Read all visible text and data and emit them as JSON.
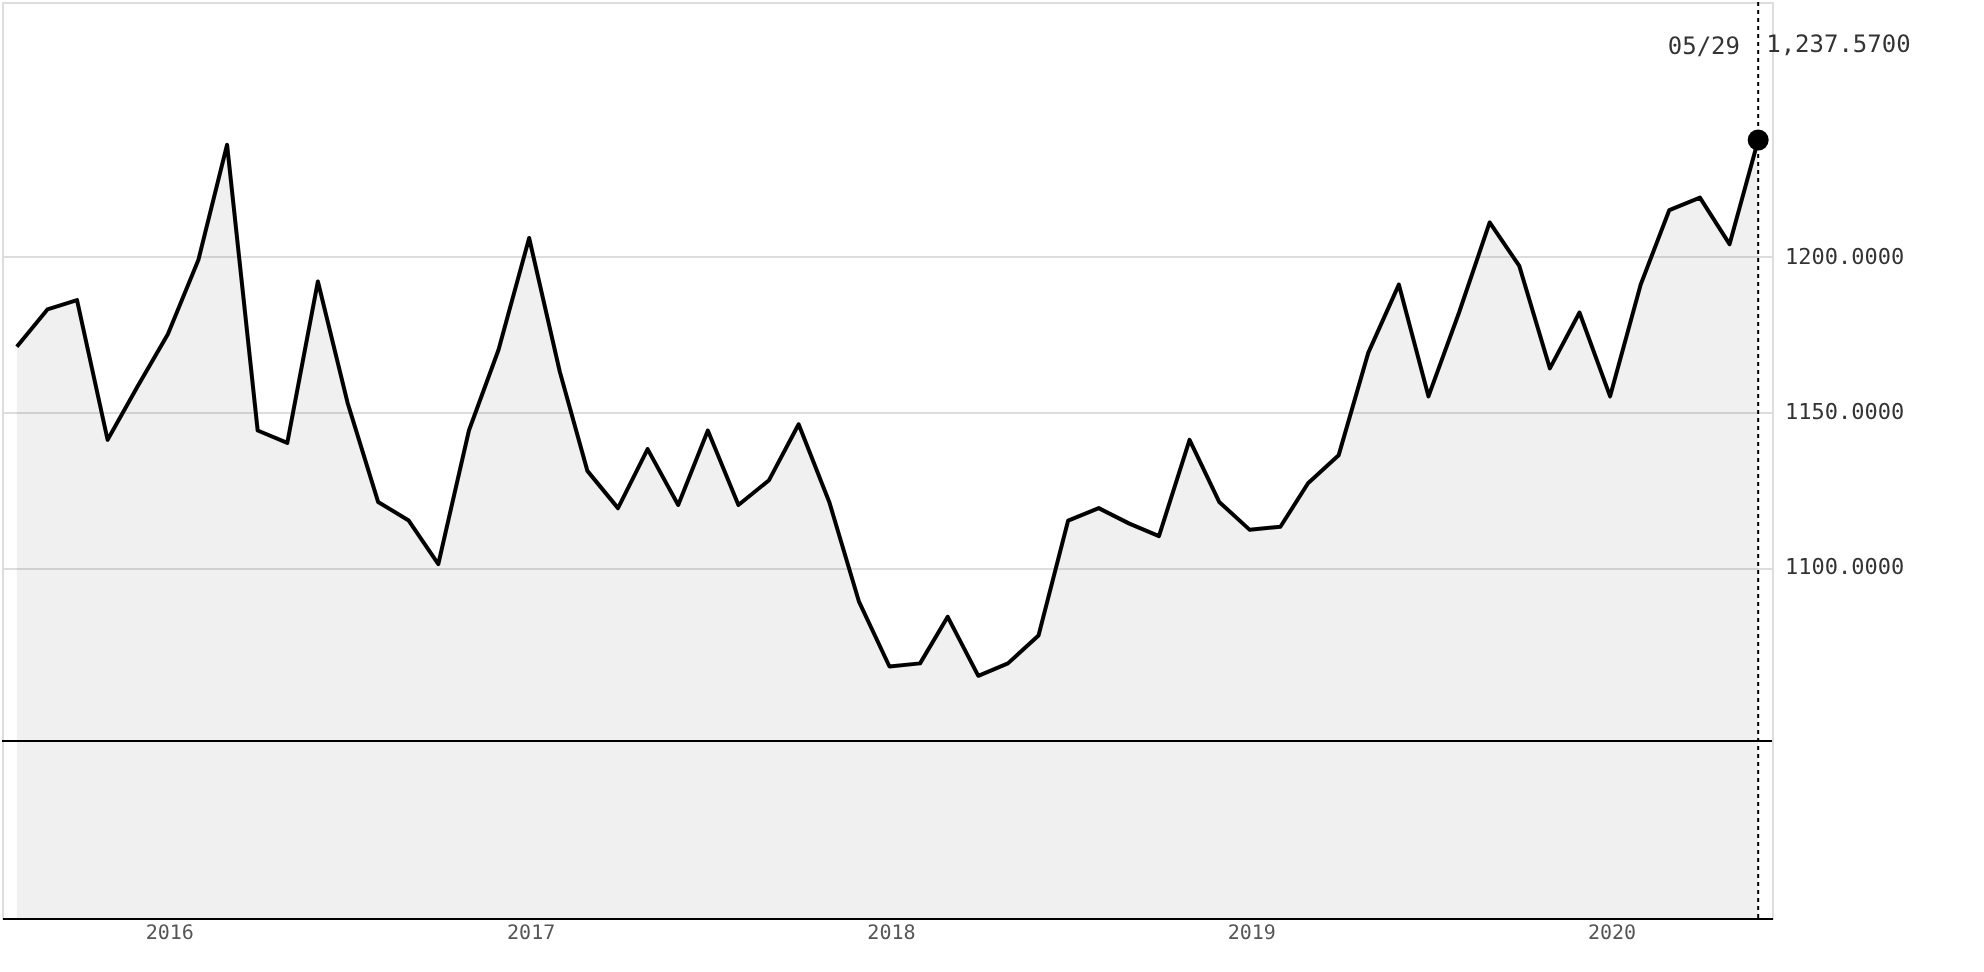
{
  "chart_data": {
    "type": "area",
    "x": [
      "2015-07-31",
      "2015-08-31",
      "2015-09-30",
      "2015-10-31",
      "2015-11-30",
      "2015-12-31",
      "2016-01-31",
      "2016-02-29",
      "2016-03-31",
      "2016-04-30",
      "2016-05-31",
      "2016-06-30",
      "2016-07-31",
      "2016-08-31",
      "2016-09-30",
      "2016-10-31",
      "2016-11-30",
      "2016-12-31",
      "2017-01-31",
      "2017-02-28",
      "2017-03-31",
      "2017-04-30",
      "2017-05-31",
      "2017-06-30",
      "2017-07-31",
      "2017-08-31",
      "2017-09-30",
      "2017-10-31",
      "2017-11-30",
      "2017-12-31",
      "2018-01-31",
      "2018-02-28",
      "2018-03-31",
      "2018-04-30",
      "2018-05-31",
      "2018-06-30",
      "2018-07-31",
      "2018-08-31",
      "2018-09-30",
      "2018-10-31",
      "2018-11-30",
      "2018-12-31",
      "2019-01-31",
      "2019-02-28",
      "2019-03-31",
      "2019-04-30",
      "2019-05-31",
      "2019-06-30",
      "2019-07-31",
      "2019-08-31",
      "2019-09-30",
      "2019-10-31",
      "2019-11-30",
      "2019-12-31",
      "2020-01-31",
      "2020-02-29",
      "2020-03-31",
      "2020-04-30",
      "2020-05-29"
    ],
    "series": [
      {
        "color": "#000000",
        "marker": "none",
        "values": [
          1171,
          1183,
          1186,
          1141,
          1158,
          1175,
          1199,
          1236,
          1144,
          1140,
          1192,
          1153,
          1121,
          1115,
          1101,
          1144,
          1170,
          1206,
          1163,
          1131,
          1119,
          1138,
          1120,
          1144,
          1120,
          1128,
          1146,
          1121,
          1089,
          1068,
          1069,
          1084,
          1065,
          1069,
          1078,
          1115,
          1119,
          1114,
          1110,
          1141,
          1121,
          1112,
          1113,
          1127,
          1136,
          1169,
          1191,
          1155,
          1182,
          1211,
          1197,
          1164,
          1182,
          1155,
          1191,
          1215,
          1219,
          1204,
          1237.57
        ]
      },
      {
        "type": "scatter",
        "color": "#000000",
        "marker": "circle",
        "x": [
          "2020-05-29"
        ],
        "values": [
          1237.57
        ],
        "value_labels": [
          "1,237.5700"
        ]
      }
    ],
    "xlim": [
      "2015-07-16",
      "2020-06-12"
    ],
    "xticks": [
      "2016",
      "2017",
      "2018",
      "2019",
      "2020"
    ],
    "ylim": [
      987,
      1282
    ],
    "yticks": [
      {
        "value": 1100,
        "label": "1100.0000"
      },
      {
        "value": 1150,
        "label": "1150.0000"
      },
      {
        "value": 1200,
        "label": "1200.0000"
      }
    ],
    "grid": "y",
    "ref_lines": [
      {
        "axis": "y",
        "value": 1044,
        "color": "#000000",
        "line_style": "solid"
      },
      {
        "axis": "x",
        "value": "2020-05-29",
        "color": "#000000",
        "line_style": "dotted"
      }
    ],
    "annotations": [
      "05/29"
    ]
  }
}
